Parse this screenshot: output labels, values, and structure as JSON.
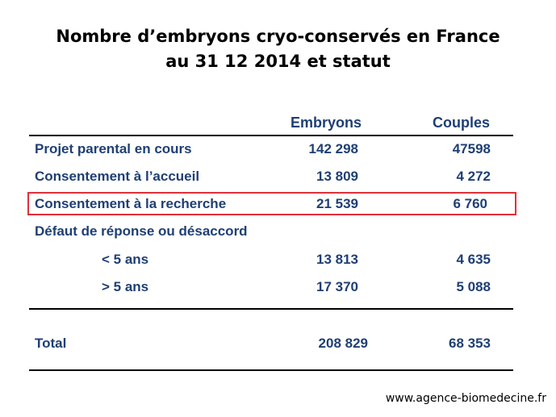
{
  "title": {
    "line1": "Nombre d’embryons cryo-conservés en France",
    "line2": "au 31 12 2014 et statut"
  },
  "table": {
    "headers": {
      "embryons": "Embryons",
      "couples": "Couples"
    },
    "rows": [
      {
        "label": "Projet parental en cours",
        "embryons": "142 298",
        "couples": "47598"
      },
      {
        "label": "Consentement à l’accueil",
        "embryons": "13 809",
        "couples": "4 272"
      },
      {
        "label": "Consentement à la recherche",
        "embryons": "21 539",
        "couples": "6 760",
        "highlighted": true
      },
      {
        "label": "Défaut de réponse ou désaccord",
        "embryons": "",
        "couples": ""
      },
      {
        "label": "< 5 ans",
        "embryons": "13 813",
        "couples": "4 635"
      },
      {
        "label": "> 5 ans",
        "embryons": "17 370",
        "couples": "5 088"
      }
    ],
    "total": {
      "label": "Total",
      "embryons": "208 829",
      "couples": "68 353"
    }
  },
  "footer": "www.agence-biomedecine.fr",
  "colors": {
    "text": "#1f3f74",
    "highlight": "#e0303a"
  }
}
